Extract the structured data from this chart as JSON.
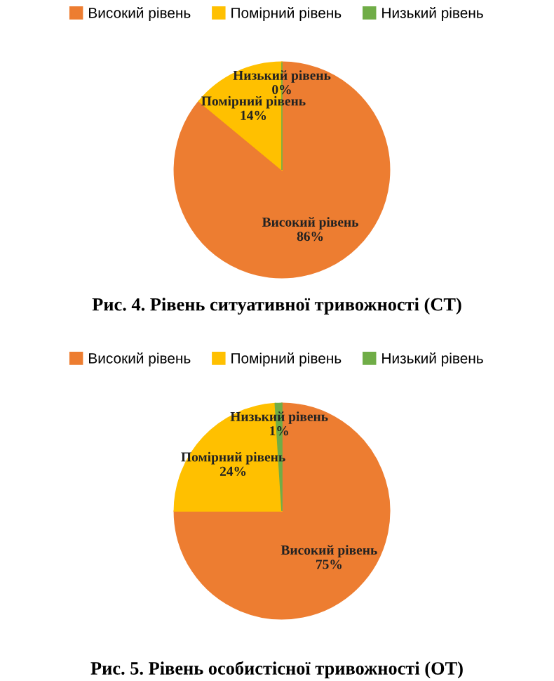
{
  "chart_data": [
    {
      "type": "pie",
      "title": "Рис. 4. Рівень ситуативної тривожності (СТ)",
      "categories": [
        "Високий рівень",
        "Помірний рівень",
        "Низький рівень"
      ],
      "values": [
        86,
        14,
        0
      ],
      "colors": [
        "#ed7d31",
        "#ffc000",
        "#70ad47"
      ],
      "value_labels": [
        "86%",
        "14%",
        "0%"
      ],
      "legend": "top"
    },
    {
      "type": "pie",
      "title": "Рис. 5. Рівень особистісної тривожності (ОТ)",
      "categories": [
        "Високий рівень",
        "Помірний рівень",
        "Низький рівень"
      ],
      "values": [
        75,
        24,
        1
      ],
      "colors": [
        "#ed7d31",
        "#ffc000",
        "#70ad47"
      ],
      "value_labels": [
        "75%",
        "24%",
        "1%"
      ],
      "legend": "top"
    }
  ]
}
